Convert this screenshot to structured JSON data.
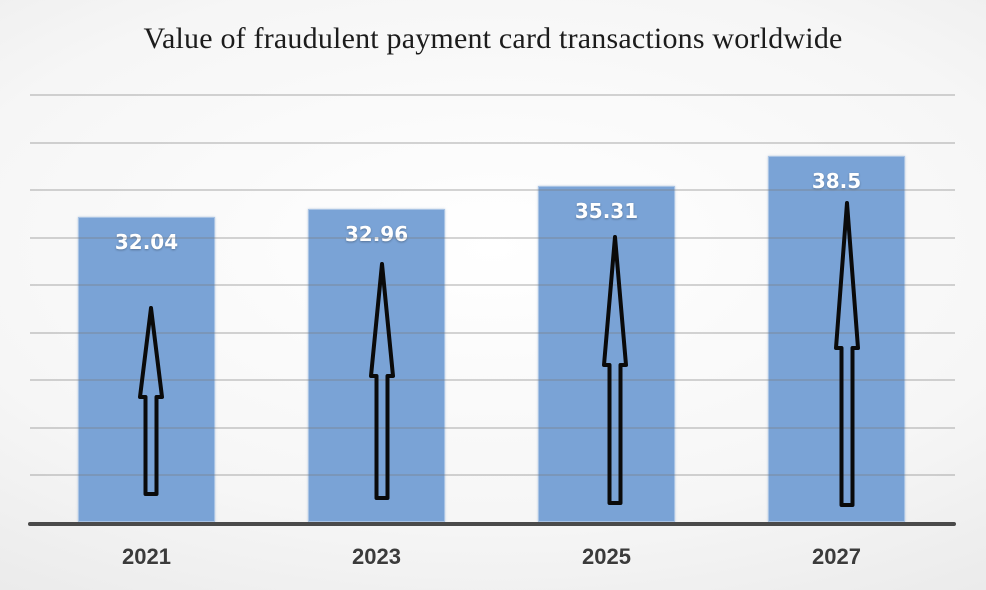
{
  "chart_data": {
    "type": "bar",
    "title": "Value of fraudulent payment card transactions worldwide",
    "categories": [
      "2021",
      "2023",
      "2025",
      "2027"
    ],
    "values": [
      32.04,
      32.96,
      35.31,
      38.5
    ],
    "value_labels": [
      "32.04",
      "32.96",
      "35.31",
      "38.5"
    ],
    "xlabel": "",
    "ylabel": "",
    "ylim": [
      0,
      45
    ],
    "gridline_step": 5,
    "grid": true,
    "legend": false,
    "y_axis_labels_visible": false,
    "bar_color": "#7aa3d6",
    "value_label_color": "#ffffff",
    "axis_label_color": "#3b3b3b",
    "axis_line_color": "#4a4a4a",
    "gridline_color": "#c6c6c6",
    "annotation": "hollow black upward arrow overlaid on each bar"
  }
}
